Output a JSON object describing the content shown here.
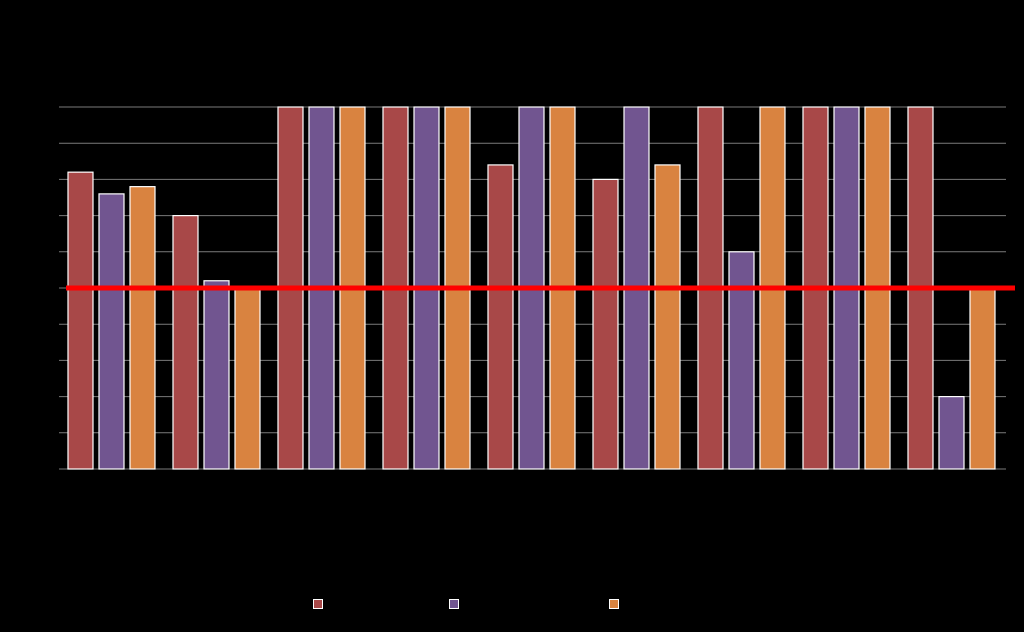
{
  "chart_data": {
    "type": "bar",
    "categories": [
      "",
      "",
      "",
      "",
      "",
      "",
      "",
      "",
      ""
    ],
    "series": [
      {
        "name": "",
        "color": "#a84848",
        "values": [
          82,
          70,
          100,
          100,
          84,
          80,
          100,
          100,
          100
        ]
      },
      {
        "name": "",
        "color": "#715590",
        "values": [
          76,
          52,
          100,
          100,
          100,
          100,
          60,
          100,
          20
        ]
      },
      {
        "name": "",
        "color": "#d98340",
        "values": [
          78,
          50,
          100,
          100,
          100,
          84,
          100,
          100,
          50
        ]
      }
    ],
    "reference_line": {
      "value": 50,
      "color": "#ff0000"
    },
    "ylim": [
      0,
      100
    ],
    "y_gridlines": [
      0,
      10,
      20,
      30,
      40,
      50,
      60,
      70,
      80,
      90,
      100
    ],
    "grid": true,
    "legend_position": "bottom",
    "background": "#000000",
    "gridline_color": "#7a7a7a",
    "bar_border_color": "#ffffff"
  }
}
